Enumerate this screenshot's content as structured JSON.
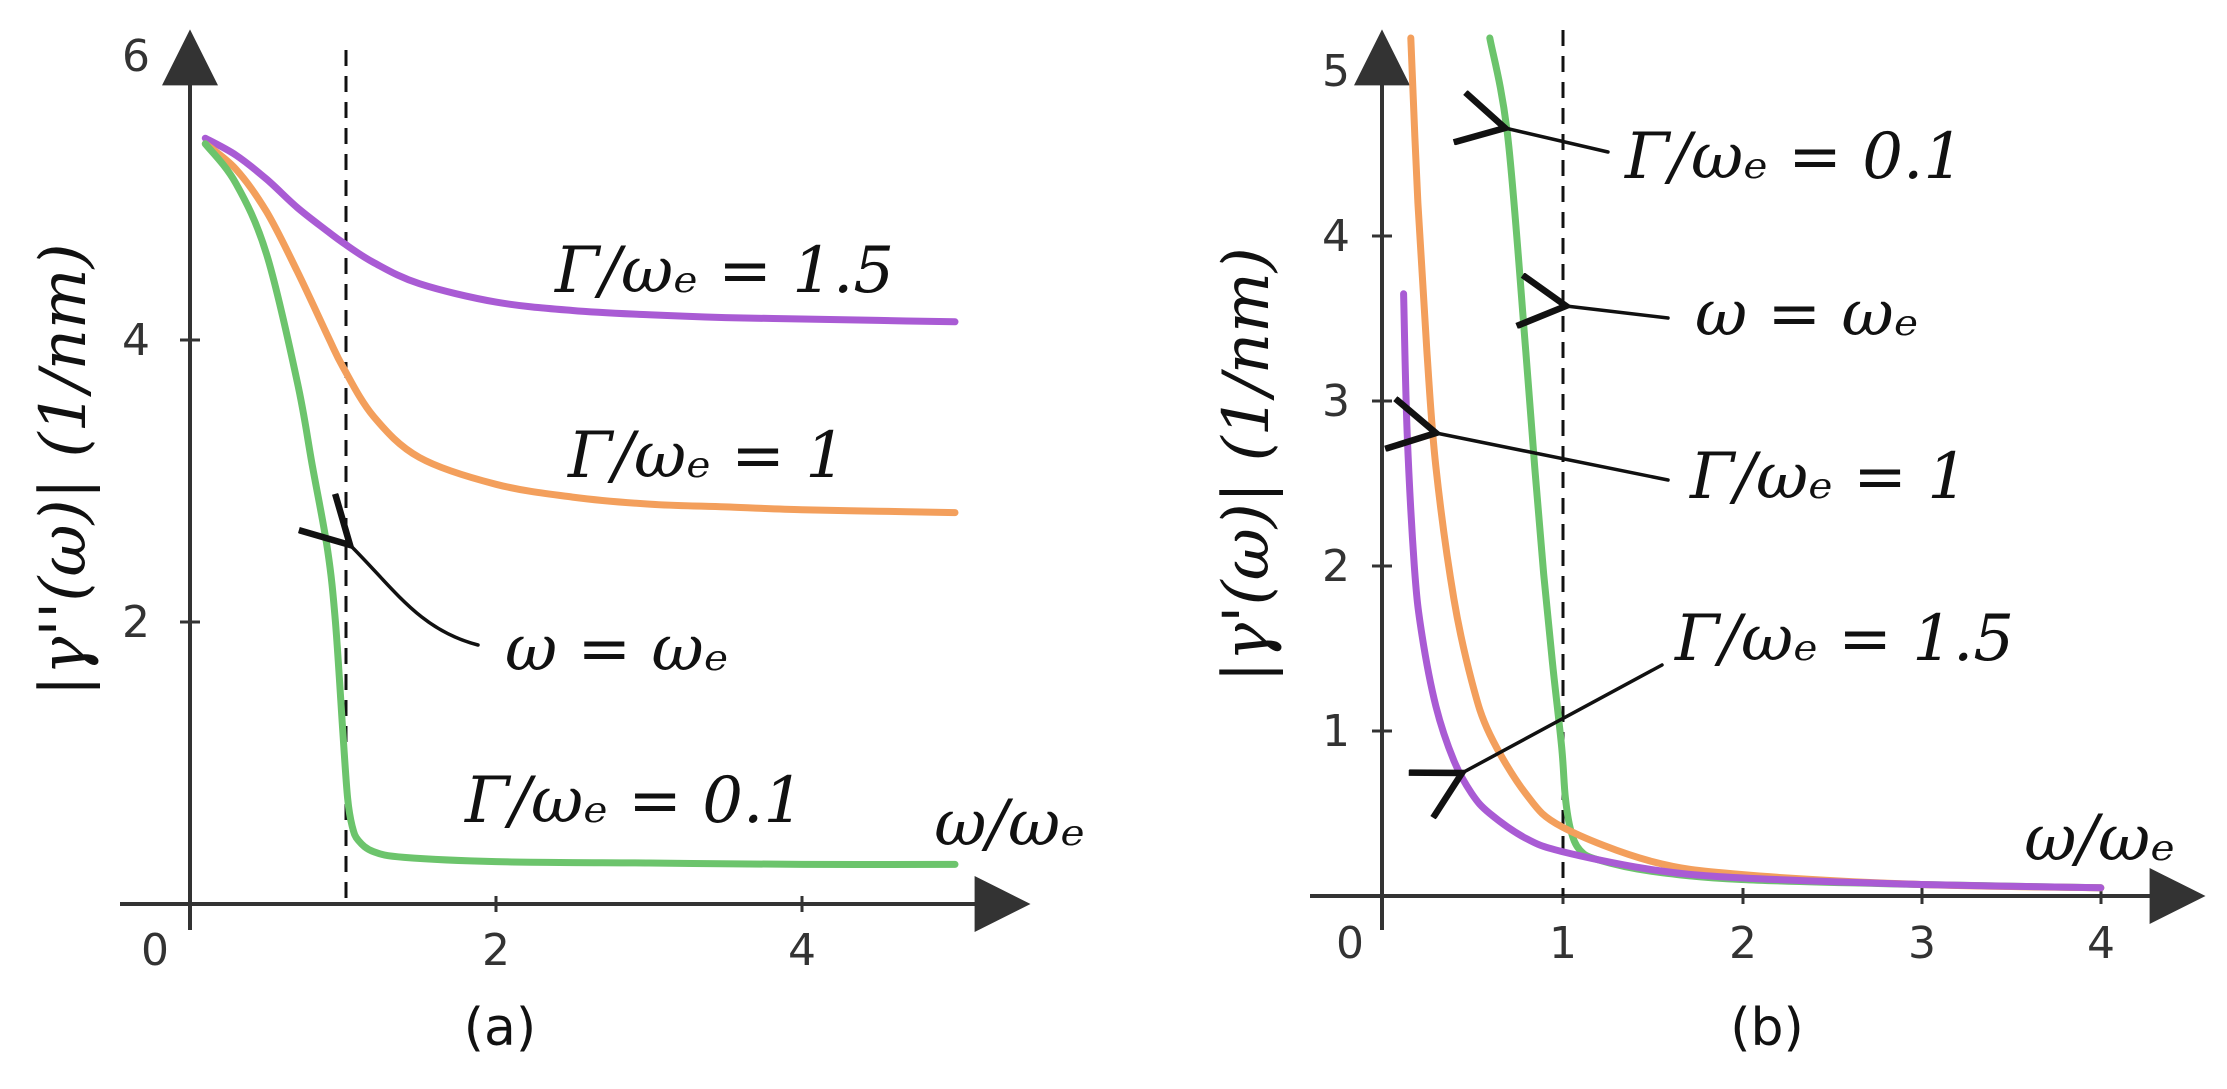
{
  "colors": {
    "green": "#6cc46c",
    "orange": "#f39f5c",
    "purple": "#a95bd4",
    "axis": "#333333"
  },
  "chart_data": [
    {
      "type": "line",
      "panel_label": "(a)",
      "ylabel": "|γ''(ω)| (1/nm)",
      "xlabel": "ω/ωₑ",
      "xlim": [
        0,
        5
      ],
      "ylim": [
        0,
        6
      ],
      "x_ticks": [
        0,
        2,
        4
      ],
      "y_ticks": [
        2,
        4,
        6
      ],
      "tick_labels": {
        "x_0": "0",
        "x_2": "2",
        "x_4": "4",
        "y_2": "2",
        "y_4": "4",
        "y_6": "6"
      },
      "vline_x": 1,
      "vline_label": "ω = ωₑ",
      "grid": false,
      "series": [
        {
          "name": "Γ/ωₑ = 1.5",
          "color": "purple",
          "x": [
            0.1,
            0.3,
            0.5,
            0.7,
            0.9,
            1.0,
            1.2,
            1.5,
            2.0,
            2.5,
            3.0,
            3.5,
            4.0,
            4.5,
            5.0
          ],
          "values": [
            5.42,
            5.3,
            5.13,
            4.93,
            4.76,
            4.68,
            4.54,
            4.39,
            4.26,
            4.2,
            4.17,
            4.15,
            4.14,
            4.13,
            4.12
          ]
        },
        {
          "name": "Γ/ωₑ = 1",
          "color": "orange",
          "x": [
            0.1,
            0.3,
            0.5,
            0.7,
            0.9,
            1.0,
            1.2,
            1.5,
            2.0,
            2.5,
            3.0,
            3.5,
            4.0,
            4.5,
            5.0
          ],
          "values": [
            5.38,
            5.2,
            4.9,
            4.48,
            4.02,
            3.8,
            3.45,
            3.16,
            2.97,
            2.88,
            2.83,
            2.81,
            2.79,
            2.78,
            2.77
          ]
        },
        {
          "name": "Γ/ωₑ = 0.1",
          "color": "green",
          "x": [
            0.1,
            0.3,
            0.5,
            0.7,
            0.8,
            0.9,
            0.95,
            1.0,
            1.03,
            1.06,
            1.1,
            1.2,
            1.4,
            2.0,
            3.0,
            4.0,
            5.0
          ],
          "values": [
            5.38,
            5.1,
            4.6,
            3.7,
            3.1,
            2.5,
            2.0,
            1.2,
            0.75,
            0.55,
            0.45,
            0.37,
            0.33,
            0.3,
            0.29,
            0.28,
            0.28
          ]
        }
      ],
      "annotations": [
        {
          "text": "Γ/ωₑ = 1.5"
        },
        {
          "text": "Γ/ωₑ = 1"
        },
        {
          "text": "Γ/ωₑ = 0.1"
        }
      ]
    },
    {
      "type": "line",
      "panel_label": "(b)",
      "ylabel": "|γ'(ω)| (1/nm)",
      "xlabel": "ω/ωₑ",
      "xlim": [
        0,
        4.4
      ],
      "ylim": [
        0,
        5.2
      ],
      "x_ticks": [
        0,
        1,
        2,
        3,
        4
      ],
      "y_ticks": [
        1,
        2,
        3,
        4,
        5
      ],
      "tick_labels": {
        "x_0": "0",
        "x_1": "1",
        "x_2": "2",
        "x_3": "3",
        "x_4": "4",
        "y_1": "1",
        "y_2": "2",
        "y_3": "3",
        "y_4": "4",
        "y_5": "5"
      },
      "vline_x": 1,
      "vline_label": "ω = ωₑ",
      "grid": false,
      "series": [
        {
          "name": "Γ/ωₑ = 0.1",
          "color": "green",
          "x": [
            0.6,
            0.7,
            0.8,
            0.85,
            0.9,
            0.95,
            1.0,
            1.02,
            1.05,
            1.1,
            1.2,
            1.5,
            2.0,
            3.0,
            4.0
          ],
          "values": [
            5.2,
            4.6,
            3.3,
            2.6,
            1.95,
            1.4,
            0.9,
            0.6,
            0.4,
            0.28,
            0.22,
            0.15,
            0.1,
            0.07,
            0.05
          ]
        },
        {
          "name": "Γ/ωₑ = 1",
          "color": "orange",
          "x": [
            0.16,
            0.2,
            0.25,
            0.3,
            0.4,
            0.5,
            0.6,
            0.8,
            1.0,
            1.5,
            2.0,
            3.0,
            4.0
          ],
          "values": [
            5.2,
            4.2,
            3.3,
            2.6,
            1.8,
            1.3,
            0.98,
            0.62,
            0.42,
            0.21,
            0.13,
            0.07,
            0.05
          ]
        },
        {
          "name": "Γ/ωₑ = 1.5",
          "color": "purple",
          "x": [
            0.12,
            0.14,
            0.18,
            0.22,
            0.3,
            0.4,
            0.5,
            0.6,
            0.8,
            1.0,
            1.5,
            2.0,
            3.0,
            4.0
          ],
          "values": [
            3.65,
            2.8,
            2.0,
            1.6,
            1.15,
            0.82,
            0.62,
            0.5,
            0.35,
            0.27,
            0.16,
            0.11,
            0.07,
            0.05
          ]
        }
      ],
      "annotations": [
        {
          "text": "Γ/ωₑ = 0.1"
        },
        {
          "text": "ω = ωₑ"
        },
        {
          "text": "Γ/ωₑ = 1"
        },
        {
          "text": "Γ/ωₑ = 1.5"
        }
      ]
    }
  ]
}
